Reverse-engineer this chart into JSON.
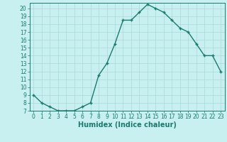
{
  "x": [
    0,
    1,
    2,
    3,
    4,
    5,
    6,
    7,
    8,
    9,
    10,
    11,
    12,
    13,
    14,
    15,
    16,
    17,
    18,
    19,
    20,
    21,
    22,
    23
  ],
  "y": [
    9,
    8,
    7.5,
    7,
    7,
    7,
    7.5,
    8,
    11.5,
    13,
    15.5,
    18.5,
    18.5,
    19.5,
    20.5,
    20,
    19.5,
    18.5,
    17.5,
    17,
    15.5,
    14,
    14,
    12
  ],
  "xlabel": "Humidex (Indice chaleur)",
  "line_color": "#1a7a6e",
  "marker": "+",
  "bg_color": "#c8f0f0",
  "grid_color": "#aad8d8",
  "xlim": [
    -0.5,
    23.5
  ],
  "ylim": [
    7,
    20.7
  ],
  "yticks": [
    7,
    8,
    9,
    10,
    11,
    12,
    13,
    14,
    15,
    16,
    17,
    18,
    19,
    20
  ],
  "xticks": [
    0,
    1,
    2,
    3,
    4,
    5,
    6,
    7,
    8,
    9,
    10,
    11,
    12,
    13,
    14,
    15,
    16,
    17,
    18,
    19,
    20,
    21,
    22,
    23
  ],
  "tick_fontsize": 5.5,
  "xlabel_fontsize": 7.0
}
